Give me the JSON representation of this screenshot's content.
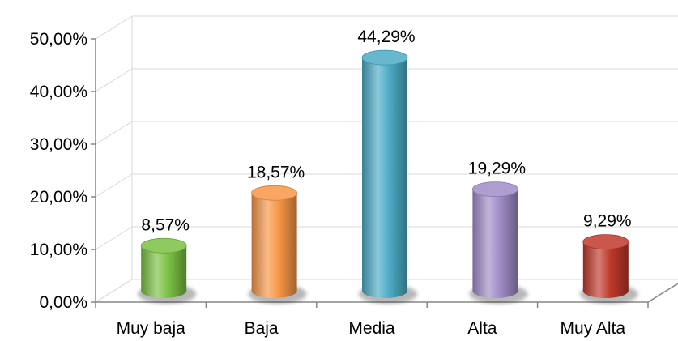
{
  "chart_data": {
    "type": "bar",
    "style": "3d-cylinder",
    "categories": [
      "Muy baja",
      "Baja",
      "Media",
      "Alta",
      "Muy Alta"
    ],
    "values": [
      8.57,
      18.57,
      44.29,
      19.29,
      9.29
    ],
    "data_labels": [
      "8,57%",
      "18,57%",
      "44,29%",
      "19,29%",
      "9,29%"
    ],
    "colors": [
      "#7ac143",
      "#f79646",
      "#4bacc6",
      "#a08cc8",
      "#c0392b"
    ],
    "ylim": [
      0,
      50
    ],
    "y_ticks": [
      0,
      10,
      20,
      30,
      40,
      50
    ],
    "y_tick_labels": [
      "0,00%",
      "10,00%",
      "20,00%",
      "30,00%",
      "40,00%",
      "50,00%"
    ],
    "grid": true,
    "legend": "none"
  }
}
